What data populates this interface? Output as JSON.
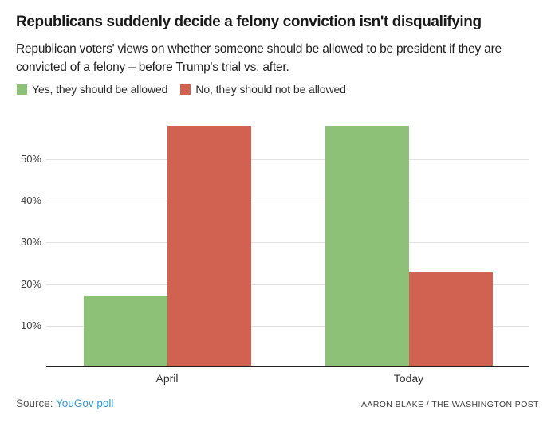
{
  "chart_data": {
    "type": "bar",
    "title": "Republicans suddenly decide a felony conviction isn't disqualifying",
    "subtitle": "Republican voters' views on whether someone should be allowed to be president if they are convicted of a felony – before Trump's trial vs. after.",
    "categories": [
      "April",
      "Today"
    ],
    "series": [
      {
        "name": "Yes, they should be allowed",
        "color": "#8ec178",
        "values": [
          17,
          58
        ]
      },
      {
        "name": "No, they should not be allowed",
        "color": "#d16150",
        "values": [
          58,
          23
        ]
      }
    ],
    "xlabel": "",
    "ylabel": "",
    "y_tick_values": [
      10,
      20,
      30,
      40,
      50
    ],
    "y_tick_labels": [
      "10%",
      "20%",
      "30%",
      "40%",
      "50%"
    ],
    "ylim": [
      0,
      60
    ],
    "grid": true,
    "legend_position": "top-left"
  },
  "footer": {
    "source_prefix": "Source: ",
    "source_link": "YouGov poll",
    "credit": "AARON BLAKE / THE WASHINGTON POST"
  },
  "colors": {
    "grid": "#e2e2e2",
    "axis": "#222222",
    "link": "#2e9bd6",
    "green": "#8ec178",
    "red": "#d16150"
  }
}
